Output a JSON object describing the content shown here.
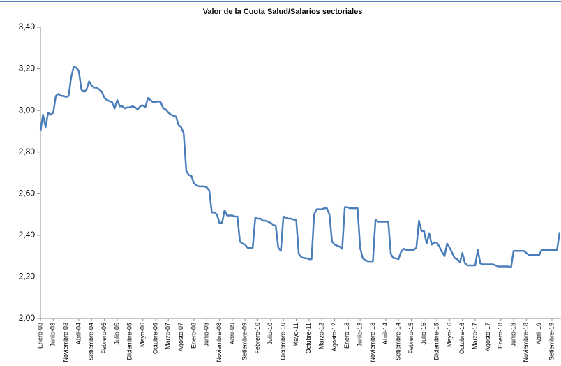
{
  "chart_data": {
    "type": "line",
    "title": "Valor de la Cuota Salud/Salarios sectoriales",
    "categories": [
      "Enero-03",
      null,
      null,
      null,
      null,
      "Junio-03",
      null,
      null,
      null,
      null,
      "Noviembre-03",
      null,
      null,
      null,
      null,
      "Abril-04",
      null,
      null,
      null,
      null,
      "Setiembre-04",
      null,
      null,
      null,
      null,
      "Febrero-05",
      null,
      null,
      null,
      null,
      "Julio-05",
      null,
      null,
      null,
      null,
      "Diciembre-05",
      null,
      null,
      null,
      null,
      "Mayo-06",
      null,
      null,
      null,
      null,
      "Octubre-06",
      null,
      null,
      null,
      null,
      "Marzo-07",
      null,
      null,
      null,
      null,
      "Agosto-07",
      null,
      null,
      null,
      null,
      "Enero-08",
      null,
      null,
      null,
      null,
      "Junio-08",
      null,
      null,
      null,
      null,
      "Noviembre-08",
      null,
      null,
      null,
      null,
      "Abril-09",
      null,
      null,
      null,
      null,
      "Setiembre-09",
      null,
      null,
      null,
      null,
      "Febrero-10",
      null,
      null,
      null,
      null,
      "Julio-10",
      null,
      null,
      null,
      null,
      "Diciembre-10",
      null,
      null,
      null,
      null,
      "Mayo-11",
      null,
      null,
      null,
      null,
      "Octubre-11",
      null,
      null,
      null,
      null,
      "Marzo-12",
      null,
      null,
      null,
      null,
      "Agosto-12",
      null,
      null,
      null,
      null,
      "Enero-13",
      null,
      null,
      null,
      null,
      "Junio-13",
      null,
      null,
      null,
      null,
      "Noviembre-13",
      null,
      null,
      null,
      null,
      "Abril-14",
      null,
      null,
      null,
      null,
      "Setiembre-14",
      null,
      null,
      null,
      null,
      "Febrero-15",
      null,
      null,
      null,
      null,
      "Julio-15",
      null,
      null,
      null,
      null,
      "Diciembre-15",
      null,
      null,
      null,
      null,
      "Mayo-16",
      null,
      null,
      null,
      null,
      "Octubre-16",
      null,
      null,
      null,
      null,
      "Marzo-17",
      null,
      null,
      null,
      null,
      "Agosto-17",
      null,
      null,
      null,
      null,
      "Enero-18",
      null,
      null,
      null,
      null,
      "Junio-18",
      null,
      null,
      null,
      null,
      "Noviembre-18",
      null,
      null,
      null,
      null,
      "Abril-19",
      null,
      null,
      null,
      null,
      "Setiembre-19",
      null,
      null,
      null
    ],
    "values": [
      2.9,
      2.98,
      2.92,
      2.99,
      2.98,
      2.99,
      3.07,
      3.08,
      3.07,
      3.07,
      3.065,
      3.07,
      3.16,
      3.21,
      3.205,
      3.19,
      3.1,
      3.09,
      3.1,
      3.14,
      3.12,
      3.11,
      3.11,
      3.1,
      3.09,
      3.06,
      3.05,
      3.045,
      3.04,
      3.01,
      3.05,
      3.02,
      3.02,
      3.01,
      3.015,
      3.015,
      3.02,
      3.015,
      3.005,
      3.02,
      3.025,
      3.015,
      3.06,
      3.05,
      3.04,
      3.04,
      3.045,
      3.04,
      3.01,
      3.005,
      2.99,
      2.98,
      2.975,
      2.97,
      2.93,
      2.92,
      2.89,
      2.71,
      2.69,
      2.685,
      2.65,
      2.64,
      2.635,
      2.635,
      2.635,
      2.63,
      2.615,
      2.51,
      2.51,
      2.5,
      2.46,
      2.46,
      2.52,
      2.495,
      2.495,
      2.495,
      2.49,
      2.49,
      2.37,
      2.36,
      2.355,
      2.34,
      2.34,
      2.34,
      2.485,
      2.48,
      2.48,
      2.47,
      2.47,
      2.465,
      2.46,
      2.45,
      2.445,
      2.34,
      2.325,
      2.49,
      2.485,
      2.48,
      2.48,
      2.475,
      2.475,
      2.31,
      2.295,
      2.29,
      2.29,
      2.285,
      2.285,
      2.5,
      2.525,
      2.525,
      2.525,
      2.53,
      2.53,
      2.5,
      2.37,
      2.355,
      2.35,
      2.345,
      2.335,
      2.535,
      2.535,
      2.53,
      2.53,
      2.53,
      2.53,
      2.34,
      2.29,
      2.28,
      2.275,
      2.275,
      2.275,
      2.475,
      2.465,
      2.465,
      2.465,
      2.465,
      2.465,
      2.31,
      2.29,
      2.29,
      2.285,
      2.32,
      2.335,
      2.33,
      2.33,
      2.33,
      2.33,
      2.34,
      2.47,
      2.42,
      2.42,
      2.36,
      2.41,
      2.355,
      2.365,
      2.365,
      2.345,
      2.32,
      2.3,
      2.36,
      2.34,
      2.315,
      2.29,
      2.285,
      2.27,
      2.315,
      2.265,
      2.255,
      2.255,
      2.255,
      2.255,
      2.33,
      2.265,
      2.26,
      2.26,
      2.26,
      2.26,
      2.26,
      2.255,
      2.25,
      2.25,
      2.25,
      2.25,
      2.25,
      2.245,
      2.325,
      2.325,
      2.325,
      2.325,
      2.325,
      2.315,
      2.305,
      2.305,
      2.305,
      2.305,
      2.305,
      2.33,
      2.33,
      2.33,
      2.33,
      2.33,
      2.33,
      2.33,
      2.415
    ],
    "color": "#4a7ebb",
    "ylim": [
      2.0,
      3.4
    ],
    "yticks": [
      {
        "value": 2.0,
        "label": "2,00"
      },
      {
        "value": 2.2,
        "label": "2,20"
      },
      {
        "value": 2.4,
        "label": "2,40"
      },
      {
        "value": 2.6,
        "label": "2,60"
      },
      {
        "value": 2.8,
        "label": "2,80"
      },
      {
        "value": 3.0,
        "label": "3,00"
      },
      {
        "value": 3.2,
        "label": "3,20"
      },
      {
        "value": 3.4,
        "label": "3,40"
      }
    ]
  }
}
